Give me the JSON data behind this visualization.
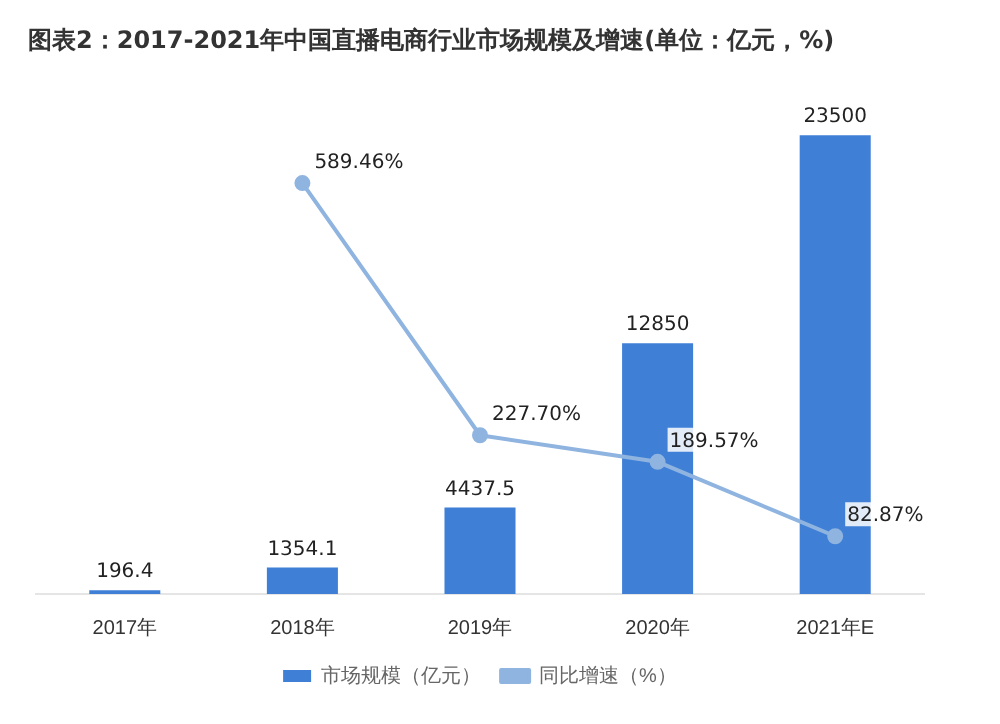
{
  "chart_data": {
    "type": "bar",
    "title": "图表2：2017-2021年中国直播电商行业市场规模及增速(单位：亿元，%)",
    "categories": [
      "2017年",
      "2018年",
      "2019年",
      "2020年",
      "2021年E"
    ],
    "series": [
      {
        "name": "市场规模（亿元）",
        "color": "#3f7fd6",
        "values": [
          196.4,
          1354.1,
          4437.5,
          12850,
          23500
        ]
      },
      {
        "name": "同比增速（%）",
        "type": "line",
        "axis": "y2",
        "color": "#8fb4e0",
        "values": [
          null,
          589.46,
          227.7,
          189.57,
          82.87
        ],
        "value_labels": [
          null,
          "589.46%",
          "227.70%",
          "189.57%",
          "82.87%"
        ]
      }
    ],
    "data_labels": true,
    "legend": "bottom",
    "marker": "circle",
    "grid": false,
    "tick_labels": "x"
  }
}
